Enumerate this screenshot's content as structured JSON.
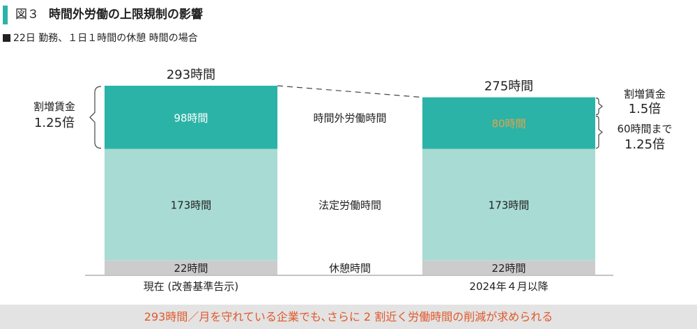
{
  "header": {
    "figure_label": "図３",
    "title": "時間外労働の上限規制の影響",
    "subtitle": "22日 勤務、１日１時間の休憩 時間の場合"
  },
  "colors": {
    "overtime": "#2cb3a8",
    "statutory": "#a8dbd3",
    "rest": "#cccccc",
    "highlight_text": "#e0a54a",
    "footer_text": "#e0582b",
    "accent_bar": "#2cb3a8"
  },
  "chart_data": {
    "type": "bar",
    "stacked": true,
    "categories": [
      "現在 (改善基準告示)",
      "2024年４月以降"
    ],
    "series": [
      {
        "name": "休憩時間",
        "values": [
          22,
          22
        ],
        "labels": [
          "22時間",
          "22時間"
        ]
      },
      {
        "name": "法定労働時間",
        "values": [
          173,
          173
        ],
        "labels": [
          "173時間",
          "173時間"
        ]
      },
      {
        "name": "時間外労働時間",
        "values": [
          98,
          80
        ],
        "labels": [
          "98時間",
          "80時間"
        ]
      }
    ],
    "totals": [
      "293時間",
      "275時間"
    ],
    "ylim": [
      0,
      293
    ],
    "annotations": {
      "left_bracket": [
        "割増賃金",
        "1.25倍"
      ],
      "right_top": [
        "割増賃金",
        "1.5倍"
      ],
      "right_bottom": [
        "60時間まで",
        "1.25倍"
      ]
    }
  },
  "footer": {
    "text": "293時間／月を守れている企業でも､さらに 2 割近く労働時間の削減が求められる"
  }
}
